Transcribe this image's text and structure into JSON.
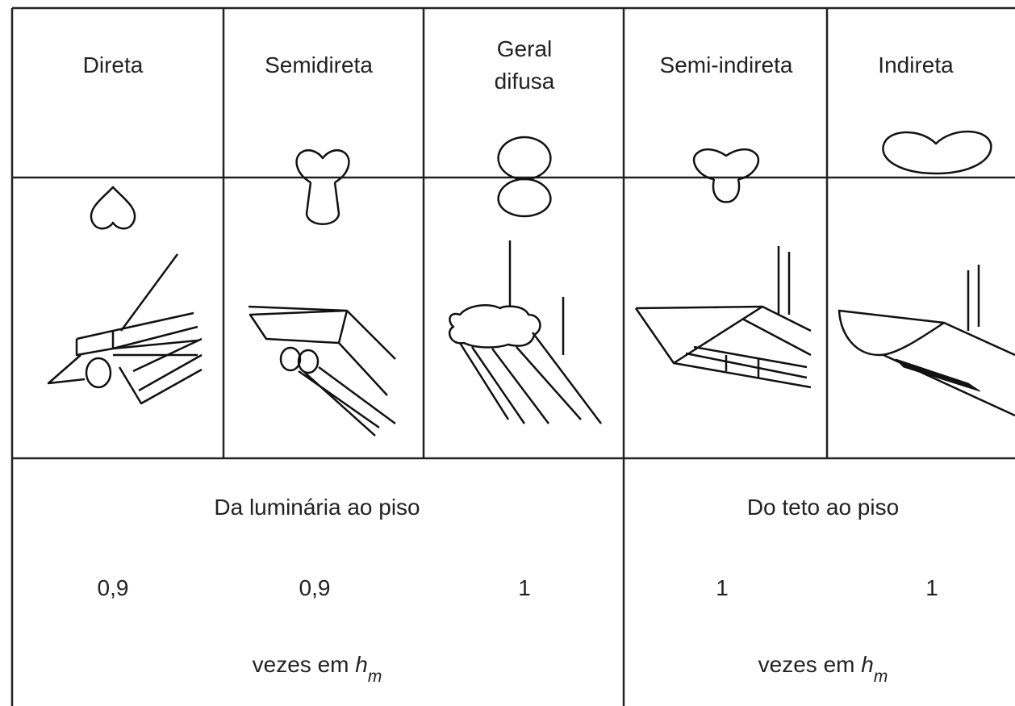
{
  "header": {
    "columns": [
      {
        "lines": [
          "Direta"
        ]
      },
      {
        "lines": [
          "Semidireta"
        ]
      },
      {
        "lines": [
          "Geral",
          "difusa"
        ]
      },
      {
        "lines": [
          "Semi-indireta"
        ]
      },
      {
        "lines": [
          "Indireta"
        ]
      }
    ]
  },
  "footer": {
    "groups": [
      {
        "title": "Da luminária ao piso",
        "unit": "vezes em ",
        "unit_var": "h",
        "unit_sub": "m"
      },
      {
        "title": "Do teto ao piso",
        "unit": "vezes em ",
        "unit_var": "h",
        "unit_sub": "m"
      }
    ],
    "factors": [
      "0,9",
      "0,9",
      "1",
      "1",
      "1"
    ]
  }
}
